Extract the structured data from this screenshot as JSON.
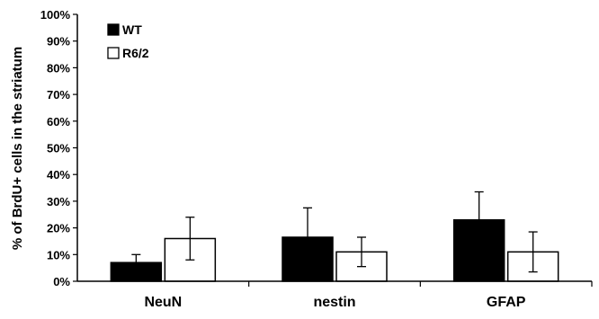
{
  "chart_data": {
    "type": "bar",
    "categories": [
      "NeuN",
      "nestin",
      "GFAP"
    ],
    "ylabel": "% of BrdU+ cells in the striatum",
    "ylim": [
      0,
      100
    ],
    "yticks": [
      "0%",
      "10%",
      "20%",
      "30%",
      "40%",
      "50%",
      "60%",
      "70%",
      "80%",
      "90%",
      "100%"
    ],
    "legend_position": "top-left",
    "series": [
      {
        "name": "WT",
        "color": "#000000",
        "values": [
          7,
          16.5,
          23
        ],
        "error": [
          3,
          11,
          10.5
        ]
      },
      {
        "name": "R6/2",
        "color": "#ffffff",
        "values": [
          16,
          11,
          11
        ],
        "error": [
          8,
          5.5,
          7.5
        ]
      }
    ]
  }
}
